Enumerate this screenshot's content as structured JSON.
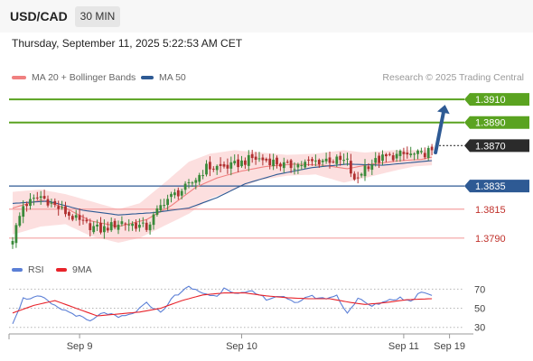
{
  "header": {
    "pair": "USD/CAD",
    "timeframe": "30 MIN",
    "datetime": "Thursday, September 11, 2025 5:22:53 AM CET"
  },
  "legend": {
    "ma_bb_label": "MA 20 + Bollinger Bands",
    "ma50_label": "MA 50",
    "credit": "Research © 2025 Trading Central"
  },
  "colors": {
    "candle_up": "#3a8a3a",
    "candle_down": "#b03030",
    "ma20": "#f08080",
    "ma50": "#2e5a94",
    "bollinger_fill": "#fbd7d7",
    "target_line": "#5aa320",
    "pivot_line": "#2e5a94",
    "support_line": "#f4a0a0",
    "rsi": "#5b7fd6",
    "rsi_ma": "#e8232a",
    "forecast_arrow": "#2e5a94"
  },
  "chart_data": [
    {
      "type": "candlestick",
      "title": "USD/CAD",
      "timeframe": "30 MIN",
      "ylim": [
        1.3775,
        1.3921
      ],
      "x_tick_labels": [
        "Sep 9",
        "Sep 10",
        "Sep 11",
        "Sep 19"
      ],
      "x_tick_index": [
        19,
        65,
        111,
        124
      ],
      "n_slots": 125,
      "close_anchors": [
        [
          0,
          1.379
        ],
        [
          3,
          1.3818
        ],
        [
          8,
          1.3826
        ],
        [
          12,
          1.3818
        ],
        [
          19,
          1.3804
        ],
        [
          25,
          1.3797
        ],
        [
          31,
          1.3804
        ],
        [
          38,
          1.3799
        ],
        [
          43,
          1.3822
        ],
        [
          50,
          1.3835
        ],
        [
          55,
          1.3851
        ],
        [
          62,
          1.3852
        ],
        [
          68,
          1.3859
        ],
        [
          73,
          1.3857
        ],
        [
          78,
          1.3852
        ],
        [
          84,
          1.3855
        ],
        [
          89,
          1.3858
        ],
        [
          95,
          1.3856
        ],
        [
          97,
          1.3838
        ],
        [
          100,
          1.3852
        ],
        [
          105,
          1.3859
        ],
        [
          110,
          1.3862
        ],
        [
          116,
          1.3862
        ],
        [
          119,
          1.3867
        ]
      ],
      "ma20_anchors": [
        [
          0,
          1.3816
        ],
        [
          8,
          1.3823
        ],
        [
          15,
          1.3816
        ],
        [
          22,
          1.3805
        ],
        [
          30,
          1.38
        ],
        [
          38,
          1.3806
        ],
        [
          45,
          1.3818
        ],
        [
          52,
          1.3834
        ],
        [
          58,
          1.3842
        ],
        [
          65,
          1.3848
        ],
        [
          72,
          1.3852
        ],
        [
          80,
          1.3854
        ],
        [
          88,
          1.3853
        ],
        [
          95,
          1.385
        ],
        [
          102,
          1.3854
        ],
        [
          110,
          1.3857
        ],
        [
          116,
          1.3858
        ],
        [
          119,
          1.386
        ]
      ],
      "ma50_anchors": [
        [
          0,
          1.382
        ],
        [
          10,
          1.3822
        ],
        [
          20,
          1.3814
        ],
        [
          30,
          1.381
        ],
        [
          40,
          1.3812
        ],
        [
          50,
          1.3816
        ],
        [
          58,
          1.3825
        ],
        [
          66,
          1.3837
        ],
        [
          75,
          1.3845
        ],
        [
          85,
          1.3851
        ],
        [
          95,
          1.3854
        ],
        [
          105,
          1.3853
        ],
        [
          112,
          1.3855
        ],
        [
          119,
          1.3857
        ]
      ],
      "bb_upper_anchors": [
        [
          0,
          1.383
        ],
        [
          8,
          1.3832
        ],
        [
          15,
          1.3828
        ],
        [
          22,
          1.3822
        ],
        [
          30,
          1.3815
        ],
        [
          36,
          1.382
        ],
        [
          44,
          1.384
        ],
        [
          50,
          1.3856
        ],
        [
          56,
          1.3863
        ],
        [
          63,
          1.3866
        ],
        [
          70,
          1.3864
        ],
        [
          78,
          1.3862
        ],
        [
          86,
          1.3863
        ],
        [
          94,
          1.3866
        ],
        [
          100,
          1.3864
        ],
        [
          108,
          1.3866
        ],
        [
          114,
          1.3866
        ],
        [
          119,
          1.3866
        ]
      ],
      "bb_lower_anchors": [
        [
          0,
          1.3793
        ],
        [
          8,
          1.38
        ],
        [
          15,
          1.3802
        ],
        [
          22,
          1.3792
        ],
        [
          30,
          1.3786
        ],
        [
          36,
          1.379
        ],
        [
          44,
          1.3802
        ],
        [
          50,
          1.3811
        ],
        [
          56,
          1.3824
        ],
        [
          63,
          1.3832
        ],
        [
          70,
          1.384
        ],
        [
          78,
          1.3844
        ],
        [
          86,
          1.3845
        ],
        [
          94,
          1.3838
        ],
        [
          100,
          1.3842
        ],
        [
          108,
          1.3848
        ],
        [
          114,
          1.3852
        ],
        [
          119,
          1.3853
        ]
      ],
      "last_close": 1.387,
      "forecast": {
        "from": [
          119,
          1.3864
        ],
        "to": [
          124,
          1.391
        ]
      },
      "levels": [
        {
          "value": 1.391,
          "label": "1.3910",
          "style": "target"
        },
        {
          "value": 1.389,
          "label": "1.3890",
          "style": "target"
        },
        {
          "value": 1.387,
          "label": "1.3870",
          "style": "last"
        },
        {
          "value": 1.3835,
          "label": "1.3835",
          "style": "pivot"
        },
        {
          "value": 1.3815,
          "label": "1.3815",
          "style": "support"
        },
        {
          "value": 1.379,
          "label": "1.3790",
          "style": "support"
        }
      ],
      "legend": [
        "MA 20 + Bollinger Bands",
        "MA 50"
      ]
    },
    {
      "type": "line",
      "title": "RSI",
      "ylim": [
        25,
        77
      ],
      "y_ticks": [
        70,
        50,
        30
      ],
      "series": [
        {
          "name": "RSI",
          "anchors": [
            [
              0,
              35
            ],
            [
              3,
              60
            ],
            [
              8,
              62
            ],
            [
              12,
              52
            ],
            [
              18,
              43
            ],
            [
              22,
              36
            ],
            [
              26,
              46
            ],
            [
              30,
              40
            ],
            [
              34,
              44
            ],
            [
              38,
              55
            ],
            [
              42,
              46
            ],
            [
              46,
              63
            ],
            [
              50,
              72
            ],
            [
              54,
              66
            ],
            [
              58,
              62
            ],
            [
              60,
              72
            ],
            [
              64,
              65
            ],
            [
              68,
              67
            ],
            [
              72,
              60
            ],
            [
              76,
              63
            ],
            [
              80,
              55
            ],
            [
              84,
              63
            ],
            [
              88,
              60
            ],
            [
              92,
              63
            ],
            [
              95,
              45
            ],
            [
              98,
              60
            ],
            [
              102,
              52
            ],
            [
              106,
              58
            ],
            [
              110,
              61
            ],
            [
              113,
              57
            ],
            [
              116,
              68
            ],
            [
              119,
              64
            ]
          ]
        },
        {
          "name": "9MA",
          "anchors": [
            [
              0,
              45
            ],
            [
              6,
              53
            ],
            [
              12,
              58
            ],
            [
              18,
              50
            ],
            [
              24,
              42
            ],
            [
              30,
              44
            ],
            [
              36,
              46
            ],
            [
              42,
              50
            ],
            [
              48,
              58
            ],
            [
              54,
              64
            ],
            [
              60,
              66
            ],
            [
              66,
              66
            ],
            [
              72,
              63
            ],
            [
              78,
              61
            ],
            [
              84,
              60
            ],
            [
              90,
              60
            ],
            [
              96,
              56
            ],
            [
              100,
              54
            ],
            [
              106,
              56
            ],
            [
              112,
              59
            ],
            [
              119,
              60
            ]
          ]
        }
      ]
    }
  ]
}
